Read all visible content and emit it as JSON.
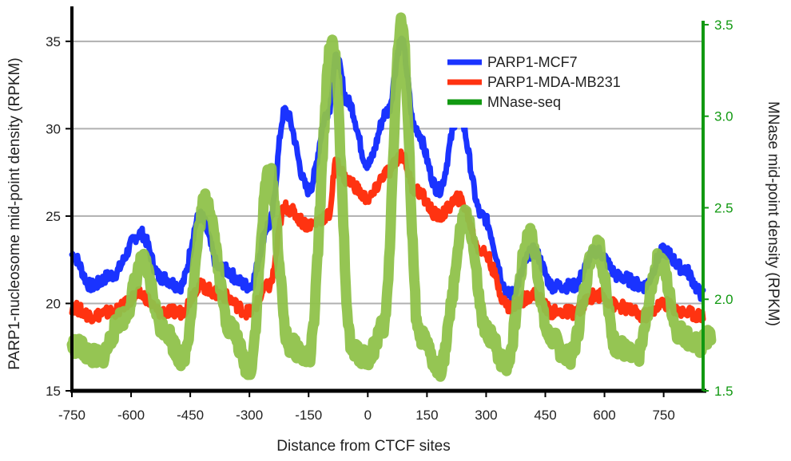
{
  "chart_data": {
    "type": "line",
    "xlabel": "Distance from CTCF sites",
    "ylabel_left": "PARP1-nucleosome mid-point density (RPKM)",
    "ylabel_right": "MNase mid-point density (RPKM)",
    "xlim": [
      -750,
      850
    ],
    "ylim_left": [
      15,
      37
    ],
    "ylim_right": [
      1.5,
      3.6
    ],
    "x_ticks": [
      "-750",
      "-600",
      "-450",
      "-300",
      "-150",
      "0",
      "150",
      "300",
      "450",
      "600",
      "750"
    ],
    "y_ticks_left": [
      "15",
      "20",
      "25",
      "30",
      "35"
    ],
    "y_ticks_right": [
      "1.5",
      "2.0",
      "2.5",
      "3.0",
      "3.5"
    ],
    "grid": "horizontal",
    "legend_position": "top-right",
    "colors": {
      "PARP1-MCF7": "#1a33ff",
      "PARP1-MDA-MB231": "#ff3311",
      "MNase-seq": "#8fc24a",
      "MNase-seq-legend": "#119911",
      "right_axis": "#119911",
      "grid": "#b0b0b0"
    },
    "series": [
      {
        "name": "PARP1-MCF7",
        "axis": "left",
        "x": [
          -750,
          -700,
          -650,
          -575,
          -525,
          -475,
          -425,
          -375,
          -300,
          -250,
          -210,
          -150,
          -100,
          -80,
          -50,
          0,
          50,
          85,
          120,
          180,
          230,
          290,
          360,
          420,
          470,
          520,
          580,
          640,
          700,
          750,
          800,
          850
        ],
        "y": [
          22.8,
          21.0,
          21.6,
          24.0,
          21.5,
          21.0,
          25.0,
          22.0,
          21.0,
          24.5,
          31.0,
          26.5,
          31.0,
          34.0,
          31.5,
          28.0,
          31.0,
          35.0,
          30.0,
          26.5,
          30.8,
          25.0,
          20.5,
          23.0,
          21.0,
          21.0,
          23.0,
          21.5,
          21.0,
          23.0,
          22.0,
          20.5
        ]
      },
      {
        "name": "PARP1-MDA-MB231",
        "axis": "left",
        "x": [
          -750,
          -700,
          -650,
          -575,
          -525,
          -475,
          -425,
          -375,
          -300,
          -250,
          -210,
          -150,
          -100,
          -80,
          -50,
          0,
          50,
          85,
          120,
          180,
          230,
          290,
          360,
          420,
          470,
          520,
          580,
          640,
          700,
          750,
          800,
          850
        ],
        "y": [
          19.8,
          19.3,
          19.5,
          20.5,
          19.5,
          19.5,
          21.0,
          20.5,
          19.5,
          21.0,
          25.5,
          24.5,
          25.0,
          28.0,
          27.0,
          26.0,
          27.5,
          28.5,
          26.5,
          25.0,
          26.0,
          23.0,
          19.8,
          20.5,
          19.5,
          19.5,
          20.5,
          19.8,
          19.3,
          20.0,
          19.5,
          19.3
        ]
      },
      {
        "name": "MNase-seq",
        "axis": "right",
        "x": [
          -750,
          -680,
          -620,
          -570,
          -520,
          -470,
          -410,
          -350,
          -300,
          -250,
          -200,
          -150,
          -90,
          -40,
          0,
          40,
          85,
          130,
          180,
          250,
          300,
          350,
          410,
          460,
          510,
          580,
          630,
          680,
          740,
          790,
          840,
          870
        ],
        "y": [
          1.75,
          1.68,
          1.9,
          2.2,
          1.85,
          1.68,
          2.55,
          1.85,
          1.62,
          2.7,
          1.75,
          1.68,
          3.4,
          1.72,
          1.68,
          1.85,
          3.5,
          1.8,
          1.62,
          2.45,
          1.82,
          1.65,
          2.35,
          1.8,
          1.68,
          2.3,
          1.75,
          1.68,
          2.22,
          1.82,
          1.75,
          1.8
        ]
      }
    ]
  }
}
